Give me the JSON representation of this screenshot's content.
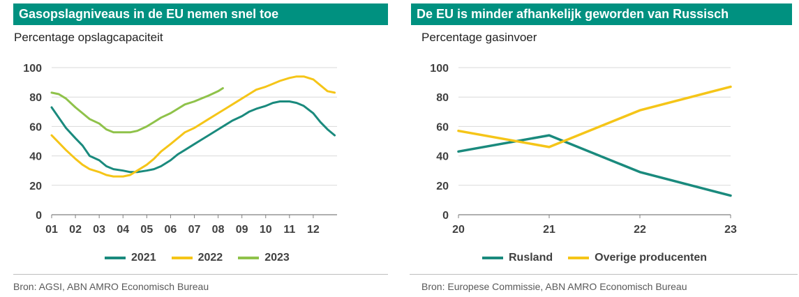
{
  "panels": {
    "left": {
      "title": "Gasopslagniveaus in de EU nemen snel toe",
      "subtitle": "Percentage opslagcapaciteit",
      "source": "Bron: AGSI, ABN AMRO Economisch Bureau"
    },
    "right": {
      "title": "De EU is minder afhankelijk geworden van Russisch",
      "subtitle": "Percentage gasinvoer",
      "source": "Bron: Europese Commissie, ABN AMRO Economisch Bureau"
    }
  },
  "colors": {
    "teal": "#1a8a7d",
    "yellow": "#f5c518",
    "green": "#8fc24a"
  },
  "chart_data": [
    {
      "type": "line",
      "xlim": [
        1,
        13
      ],
      "ylim": [
        0,
        100
      ],
      "xticks": [
        "01",
        "02",
        "03",
        "04",
        "05",
        "06",
        "07",
        "08",
        "09",
        "10",
        "11",
        "12"
      ],
      "yticks": [
        0,
        20,
        40,
        60,
        80,
        100
      ],
      "grid": true,
      "legend_position": "bottom",
      "series": [
        {
          "name": "2021",
          "color": "#1a8a7d",
          "x": [
            1.0,
            1.3,
            1.6,
            2.0,
            2.3,
            2.6,
            3.0,
            3.3,
            3.6,
            4.0,
            4.3,
            4.6,
            5.0,
            5.3,
            5.6,
            6.0,
            6.3,
            6.6,
            7.0,
            7.3,
            7.6,
            8.0,
            8.3,
            8.6,
            9.0,
            9.3,
            9.6,
            10.0,
            10.3,
            10.6,
            11.0,
            11.3,
            11.6,
            12.0,
            12.3,
            12.6,
            12.9
          ],
          "y": [
            73,
            66,
            59,
            52,
            47,
            40,
            37,
            33,
            31,
            30,
            29,
            29,
            30,
            31,
            33,
            37,
            41,
            44,
            48,
            51,
            54,
            58,
            61,
            64,
            67,
            70,
            72,
            74,
            76,
            77,
            77,
            76,
            74,
            69,
            63,
            58,
            54
          ]
        },
        {
          "name": "2022",
          "color": "#f5c518",
          "x": [
            1.0,
            1.3,
            1.6,
            2.0,
            2.3,
            2.6,
            3.0,
            3.3,
            3.6,
            4.0,
            4.3,
            4.6,
            5.0,
            5.3,
            5.6,
            6.0,
            6.3,
            6.6,
            7.0,
            7.3,
            7.6,
            8.0,
            8.3,
            8.6,
            9.0,
            9.3,
            9.6,
            10.0,
            10.3,
            10.6,
            11.0,
            11.3,
            11.6,
            12.0,
            12.3,
            12.6,
            12.9
          ],
          "y": [
            54,
            49,
            44,
            38,
            34,
            31,
            29,
            27,
            26,
            26,
            27,
            30,
            34,
            38,
            43,
            48,
            52,
            56,
            59,
            62,
            65,
            69,
            72,
            75,
            79,
            82,
            85,
            87,
            89,
            91,
            93,
            94,
            94,
            92,
            88,
            84,
            83
          ]
        },
        {
          "name": "2023",
          "color": "#8fc24a",
          "x": [
            1.0,
            1.3,
            1.6,
            2.0,
            2.3,
            2.6,
            3.0,
            3.3,
            3.6,
            4.0,
            4.3,
            4.6,
            5.0,
            5.3,
            5.6,
            6.0,
            6.3,
            6.6,
            7.0,
            7.3,
            7.6,
            8.0,
            8.2
          ],
          "y": [
            83,
            82,
            79,
            73,
            69,
            65,
            62,
            58,
            56,
            56,
            56,
            57,
            60,
            63,
            66,
            69,
            72,
            75,
            77,
            79,
            81,
            84,
            86
          ]
        }
      ]
    },
    {
      "type": "line",
      "x": [
        20,
        21,
        22,
        23
      ],
      "xlim": [
        20,
        23
      ],
      "ylim": [
        0,
        100
      ],
      "xticks": [
        "20",
        "21",
        "22",
        "23"
      ],
      "yticks": [
        0,
        20,
        40,
        60,
        80,
        100
      ],
      "grid": true,
      "legend_position": "bottom",
      "series": [
        {
          "name": "Rusland",
          "color": "#1a8a7d",
          "values": [
            43,
            54,
            29,
            13
          ]
        },
        {
          "name": "Overige producenten",
          "color": "#f5c518",
          "values": [
            57,
            46,
            71,
            87
          ]
        }
      ]
    }
  ]
}
